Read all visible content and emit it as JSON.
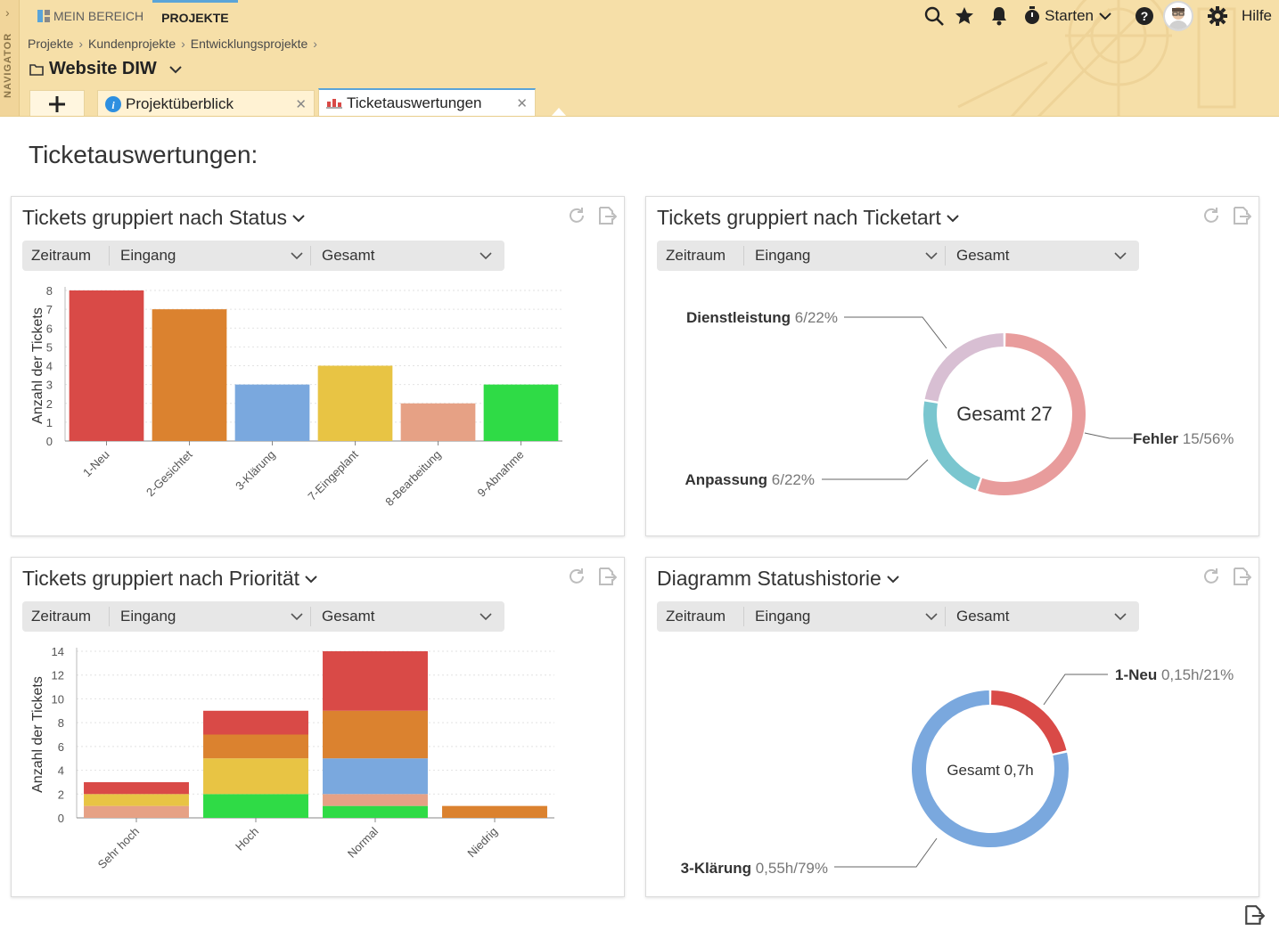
{
  "nav": {
    "label": "NAVIGATOR"
  },
  "top_tabs": [
    {
      "label": "MEIN BEREICH",
      "icon": "dashboard-icon"
    },
    {
      "label": "PROJEKTE",
      "icon": ""
    }
  ],
  "breadcrumb": [
    "Projekte",
    "Kundenprojekte",
    "Entwicklungsprojekte"
  ],
  "project": {
    "title": "Website DIW"
  },
  "tools": {
    "start_label": "Starten",
    "help_label": "Hilfe"
  },
  "doc_tabs": [
    {
      "label": "Projektüberblick",
      "icon": "info-icon"
    },
    {
      "label": "Ticketauswertungen",
      "icon": "chart-icon"
    }
  ],
  "page": {
    "title": "Ticketauswertungen:"
  },
  "cards": [
    {
      "title": "Tickets gruppiert  nach Status",
      "f1": "Zeitraum",
      "f2": "Eingang",
      "f3": "Gesamt"
    },
    {
      "title": "Tickets gruppiert  nach Ticketart",
      "f1": "Zeitraum",
      "f2": "Eingang",
      "f3": "Gesamt"
    },
    {
      "title": "Tickets gruppiert  nach Priorität",
      "f1": "Zeitraum",
      "f2": "Eingang",
      "f3": "Gesamt"
    },
    {
      "title": "Diagramm Statushistorie",
      "f1": "Zeitraum",
      "f2": "Eingang",
      "f3": "Gesamt"
    }
  ],
  "colors": {
    "neu": "#d94a47",
    "gesichtet": "#db822f",
    "klaerung": "#7aa8de",
    "eingeplant": "#e8c444",
    "bearbeitung": "#e6a185",
    "abnahme": "#2fdb46",
    "fehler": "#e89c9c",
    "anpassung": "#7ac6cf",
    "dienstleistung": "#d8bfd3"
  },
  "chart_data": [
    {
      "type": "bar",
      "categories": [
        "1-Neu",
        "2-Gesichtet",
        "3-Klärung",
        "7-Eingeplant",
        "8-Bearbeitung",
        "9-Abnahme"
      ],
      "values": [
        8,
        7,
        3,
        4,
        2,
        3
      ],
      "colors": [
        "#d94a47",
        "#db822f",
        "#7aa8de",
        "#e8c444",
        "#e6a185",
        "#2fdb46"
      ],
      "ylabel": "Anzahl der Tickets",
      "ylim": [
        0,
        8
      ],
      "yticks": [
        0,
        1,
        2,
        3,
        4,
        5,
        6,
        7,
        8
      ]
    },
    {
      "type": "pie",
      "center_label": "Gesamt 27",
      "slices": [
        {
          "name": "Fehler",
          "value": 15,
          "label": "15/56%",
          "color": "#e89c9c"
        },
        {
          "name": "Anpassung",
          "value": 6,
          "label": "6/22%",
          "color": "#7ac6cf"
        },
        {
          "name": "Dienstleistung",
          "value": 6,
          "label": "6/22%",
          "color": "#d8bfd3"
        }
      ]
    },
    {
      "type": "bar",
      "stacked": true,
      "categories": [
        "Sehr hoch",
        "Hoch",
        "Normal",
        "Niedrig"
      ],
      "ylabel": "Anzahl der Tickets",
      "ylim": [
        0,
        14
      ],
      "yticks": [
        0,
        2,
        4,
        6,
        8,
        10,
        12,
        14
      ],
      "series": [
        {
          "color": "#2fdb46",
          "values": [
            0,
            2,
            1,
            0
          ]
        },
        {
          "color": "#e6a185",
          "values": [
            1,
            0,
            1,
            0
          ]
        },
        {
          "color": "#7aa8de",
          "values": [
            0,
            0,
            3,
            0
          ]
        },
        {
          "color": "#e8c444",
          "values": [
            1,
            3,
            0,
            0
          ]
        },
        {
          "color": "#db822f",
          "values": [
            0,
            2,
            4,
            1
          ]
        },
        {
          "color": "#d94a47",
          "values": [
            1,
            2,
            5,
            0
          ]
        }
      ]
    },
    {
      "type": "pie",
      "center_label": "Gesamt 0,7h",
      "slices": [
        {
          "name": "1-Neu",
          "value": 0.15,
          "label": "0,15h/21%",
          "color": "#d94a47"
        },
        {
          "name": "3-Klärung",
          "value": 0.55,
          "label": "0,55h/79%",
          "color": "#7aa8de"
        }
      ]
    }
  ]
}
